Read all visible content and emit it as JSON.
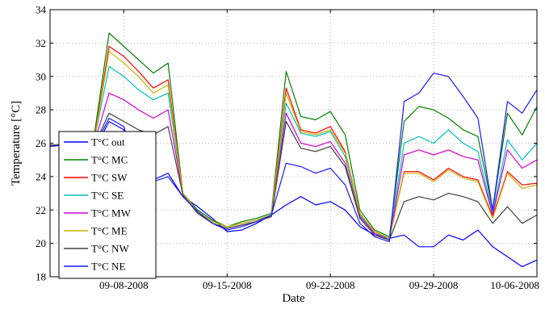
{
  "chart_data": {
    "type": "line",
    "xlabel": "Date",
    "ylabel": "Temperature [°C]",
    "xlim": [
      "2008-09-03",
      "2008-10-06"
    ],
    "ylim": [
      18,
      34
    ],
    "x_ticks": [
      "09-08-2008",
      "09-15-2008",
      "09-22-2008",
      "09-29-2008",
      "10-06-2008"
    ],
    "y_ticks": [
      18,
      20,
      22,
      24,
      26,
      28,
      30,
      32,
      34
    ],
    "grid": "on",
    "legend_position": "bottom-left",
    "series": [
      {
        "name": "T°C out",
        "color": "#0000ff",
        "points": [
          [
            "2008-09-03",
            25.8
          ],
          [
            "2008-09-04",
            26.0
          ],
          [
            "2008-09-05",
            25.4
          ],
          [
            "2008-09-06",
            25.6
          ],
          [
            "2008-09-07",
            27.3
          ],
          [
            "2008-09-08",
            26.8
          ],
          [
            "2008-09-09",
            24.2
          ],
          [
            "2008-09-10",
            23.8
          ],
          [
            "2008-09-11",
            24.2
          ],
          [
            "2008-09-12",
            22.8
          ],
          [
            "2008-09-13",
            22.2
          ],
          [
            "2008-09-14",
            21.5
          ],
          [
            "2008-09-15",
            20.7
          ],
          [
            "2008-09-16",
            20.8
          ],
          [
            "2008-09-17",
            21.2
          ],
          [
            "2008-09-18",
            21.7
          ],
          [
            "2008-09-19",
            22.3
          ],
          [
            "2008-09-20",
            22.8
          ],
          [
            "2008-09-21",
            22.3
          ],
          [
            "2008-09-22",
            22.5
          ],
          [
            "2008-09-23",
            22.0
          ],
          [
            "2008-09-24",
            21.0
          ],
          [
            "2008-09-25",
            20.5
          ],
          [
            "2008-09-26",
            20.3
          ],
          [
            "2008-09-27",
            20.5
          ],
          [
            "2008-09-28",
            19.8
          ],
          [
            "2008-09-29",
            19.8
          ],
          [
            "2008-09-30",
            20.5
          ],
          [
            "2008-10-01",
            20.2
          ],
          [
            "2008-10-02",
            20.8
          ],
          [
            "2008-10-03",
            19.8
          ],
          [
            "2008-10-04",
            19.2
          ],
          [
            "2008-10-05",
            18.6
          ],
          [
            "2008-10-06",
            19.0
          ]
        ]
      },
      {
        "name": "T°C MC",
        "color": "#008000",
        "points": [
          [
            "2008-09-03",
            25.9
          ],
          [
            "2008-09-04",
            25.9
          ],
          [
            "2008-09-05",
            25.8
          ],
          [
            "2008-09-06",
            26.5
          ],
          [
            "2008-09-07",
            32.6
          ],
          [
            "2008-09-08",
            31.8
          ],
          [
            "2008-09-09",
            31.0
          ],
          [
            "2008-09-10",
            30.2
          ],
          [
            "2008-09-11",
            30.8
          ],
          [
            "2008-09-12",
            23.0
          ],
          [
            "2008-09-13",
            22.0
          ],
          [
            "2008-09-14",
            21.4
          ],
          [
            "2008-09-15",
            21.0
          ],
          [
            "2008-09-16",
            21.3
          ],
          [
            "2008-09-17",
            21.5
          ],
          [
            "2008-09-18",
            21.8
          ],
          [
            "2008-09-19",
            30.3
          ],
          [
            "2008-09-20",
            27.6
          ],
          [
            "2008-09-21",
            27.4
          ],
          [
            "2008-09-22",
            27.9
          ],
          [
            "2008-09-23",
            26.5
          ],
          [
            "2008-09-24",
            22.0
          ],
          [
            "2008-09-25",
            20.8
          ],
          [
            "2008-09-26",
            20.4
          ],
          [
            "2008-09-27",
            27.3
          ],
          [
            "2008-09-28",
            28.2
          ],
          [
            "2008-09-29",
            28.0
          ],
          [
            "2008-09-30",
            27.5
          ],
          [
            "2008-10-01",
            26.8
          ],
          [
            "2008-10-02",
            26.4
          ],
          [
            "2008-10-03",
            22.0
          ],
          [
            "2008-10-04",
            27.8
          ],
          [
            "2008-10-05",
            26.5
          ],
          [
            "2008-10-06",
            28.2
          ]
        ]
      },
      {
        "name": "T°C SW",
        "color": "#ff0000",
        "points": [
          [
            "2008-09-03",
            25.9
          ],
          [
            "2008-09-04",
            25.9
          ],
          [
            "2008-09-05",
            25.7
          ],
          [
            "2008-09-06",
            26.3
          ],
          [
            "2008-09-07",
            31.8
          ],
          [
            "2008-09-08",
            31.2
          ],
          [
            "2008-09-09",
            30.3
          ],
          [
            "2008-09-10",
            29.3
          ],
          [
            "2008-09-11",
            29.8
          ],
          [
            "2008-09-12",
            23.0
          ],
          [
            "2008-09-13",
            21.9
          ],
          [
            "2008-09-14",
            21.3
          ],
          [
            "2008-09-15",
            21.0
          ],
          [
            "2008-09-16",
            21.2
          ],
          [
            "2008-09-17",
            21.4
          ],
          [
            "2008-09-18",
            21.7
          ],
          [
            "2008-09-19",
            29.3
          ],
          [
            "2008-09-20",
            26.8
          ],
          [
            "2008-09-21",
            26.6
          ],
          [
            "2008-09-22",
            27.0
          ],
          [
            "2008-09-23",
            25.5
          ],
          [
            "2008-09-24",
            21.8
          ],
          [
            "2008-09-25",
            20.7
          ],
          [
            "2008-09-26",
            20.3
          ],
          [
            "2008-09-27",
            24.3
          ],
          [
            "2008-09-28",
            24.3
          ],
          [
            "2008-09-29",
            23.8
          ],
          [
            "2008-09-30",
            24.5
          ],
          [
            "2008-10-01",
            24.0
          ],
          [
            "2008-10-02",
            23.8
          ],
          [
            "2008-10-03",
            21.6
          ],
          [
            "2008-10-04",
            24.3
          ],
          [
            "2008-10-05",
            23.5
          ],
          [
            "2008-10-06",
            23.6
          ]
        ]
      },
      {
        "name": "T°C SE",
        "color": "#00c0c0",
        "points": [
          [
            "2008-09-03",
            25.9
          ],
          [
            "2008-09-04",
            25.9
          ],
          [
            "2008-09-05",
            25.7
          ],
          [
            "2008-09-06",
            26.2
          ],
          [
            "2008-09-07",
            30.6
          ],
          [
            "2008-09-08",
            30.0
          ],
          [
            "2008-09-09",
            29.2
          ],
          [
            "2008-09-10",
            28.6
          ],
          [
            "2008-09-11",
            29.0
          ],
          [
            "2008-09-12",
            23.0
          ],
          [
            "2008-09-13",
            21.9
          ],
          [
            "2008-09-14",
            21.3
          ],
          [
            "2008-09-15",
            21.0
          ],
          [
            "2008-09-16",
            21.2
          ],
          [
            "2008-09-17",
            21.4
          ],
          [
            "2008-09-18",
            21.7
          ],
          [
            "2008-09-19",
            28.4
          ],
          [
            "2008-09-20",
            26.6
          ],
          [
            "2008-09-21",
            26.4
          ],
          [
            "2008-09-22",
            26.7
          ],
          [
            "2008-09-23",
            25.2
          ],
          [
            "2008-09-24",
            21.7
          ],
          [
            "2008-09-25",
            20.6
          ],
          [
            "2008-09-26",
            20.3
          ],
          [
            "2008-09-27",
            26.0
          ],
          [
            "2008-09-28",
            26.4
          ],
          [
            "2008-09-29",
            26.0
          ],
          [
            "2008-09-30",
            26.8
          ],
          [
            "2008-10-01",
            26.0
          ],
          [
            "2008-10-02",
            25.5
          ],
          [
            "2008-10-03",
            21.8
          ],
          [
            "2008-10-04",
            26.2
          ],
          [
            "2008-10-05",
            25.0
          ],
          [
            "2008-10-06",
            26.0
          ]
        ]
      },
      {
        "name": "T°C MW",
        "color": "#d000d0",
        "points": [
          [
            "2008-09-03",
            25.9
          ],
          [
            "2008-09-04",
            25.9
          ],
          [
            "2008-09-05",
            25.6
          ],
          [
            "2008-09-06",
            26.0
          ],
          [
            "2008-09-07",
            29.0
          ],
          [
            "2008-09-08",
            28.6
          ],
          [
            "2008-09-09",
            28.0
          ],
          [
            "2008-09-10",
            27.5
          ],
          [
            "2008-09-11",
            28.0
          ],
          [
            "2008-09-12",
            23.0
          ],
          [
            "2008-09-13",
            21.9
          ],
          [
            "2008-09-14",
            21.2
          ],
          [
            "2008-09-15",
            20.9
          ],
          [
            "2008-09-16",
            21.1
          ],
          [
            "2008-09-17",
            21.3
          ],
          [
            "2008-09-18",
            21.6
          ],
          [
            "2008-09-19",
            27.8
          ],
          [
            "2008-09-20",
            26.0
          ],
          [
            "2008-09-21",
            25.8
          ],
          [
            "2008-09-22",
            26.1
          ],
          [
            "2008-09-23",
            24.8
          ],
          [
            "2008-09-24",
            21.6
          ],
          [
            "2008-09-25",
            20.6
          ],
          [
            "2008-09-26",
            20.2
          ],
          [
            "2008-09-27",
            25.3
          ],
          [
            "2008-09-28",
            25.6
          ],
          [
            "2008-09-29",
            25.3
          ],
          [
            "2008-09-30",
            25.6
          ],
          [
            "2008-10-01",
            25.2
          ],
          [
            "2008-10-02",
            25.0
          ],
          [
            "2008-10-03",
            21.7
          ],
          [
            "2008-10-04",
            25.6
          ],
          [
            "2008-10-05",
            24.5
          ],
          [
            "2008-10-06",
            25.0
          ]
        ]
      },
      {
        "name": "T°C ME",
        "color": "#c8b400",
        "points": [
          [
            "2008-09-03",
            25.9
          ],
          [
            "2008-09-04",
            25.9
          ],
          [
            "2008-09-05",
            25.7
          ],
          [
            "2008-09-06",
            26.2
          ],
          [
            "2008-09-07",
            31.5
          ],
          [
            "2008-09-08",
            30.8
          ],
          [
            "2008-09-09",
            30.0
          ],
          [
            "2008-09-10",
            29.0
          ],
          [
            "2008-09-11",
            29.5
          ],
          [
            "2008-09-12",
            23.0
          ],
          [
            "2008-09-13",
            21.9
          ],
          [
            "2008-09-14",
            21.3
          ],
          [
            "2008-09-15",
            21.0
          ],
          [
            "2008-09-16",
            21.2
          ],
          [
            "2008-09-17",
            21.4
          ],
          [
            "2008-09-18",
            21.7
          ],
          [
            "2008-09-19",
            29.0
          ],
          [
            "2008-09-20",
            26.7
          ],
          [
            "2008-09-21",
            26.5
          ],
          [
            "2008-09-22",
            26.8
          ],
          [
            "2008-09-23",
            25.4
          ],
          [
            "2008-09-24",
            21.8
          ],
          [
            "2008-09-25",
            20.7
          ],
          [
            "2008-09-26",
            20.3
          ],
          [
            "2008-09-27",
            24.2
          ],
          [
            "2008-09-28",
            24.2
          ],
          [
            "2008-09-29",
            23.7
          ],
          [
            "2008-09-30",
            24.4
          ],
          [
            "2008-10-01",
            23.9
          ],
          [
            "2008-10-02",
            23.7
          ],
          [
            "2008-10-03",
            21.5
          ],
          [
            "2008-10-04",
            24.2
          ],
          [
            "2008-10-05",
            23.3
          ],
          [
            "2008-10-06",
            23.5
          ]
        ]
      },
      {
        "name": "T°C NW",
        "color": "#404040",
        "points": [
          [
            "2008-09-03",
            25.9
          ],
          [
            "2008-09-04",
            25.9
          ],
          [
            "2008-09-05",
            25.6
          ],
          [
            "2008-09-06",
            25.9
          ],
          [
            "2008-09-07",
            27.8
          ],
          [
            "2008-09-08",
            27.3
          ],
          [
            "2008-09-09",
            26.8
          ],
          [
            "2008-09-10",
            26.5
          ],
          [
            "2008-09-11",
            27.0
          ],
          [
            "2008-09-12",
            22.9
          ],
          [
            "2008-09-13",
            21.8
          ],
          [
            "2008-09-14",
            21.2
          ],
          [
            "2008-09-15",
            20.9
          ],
          [
            "2008-09-16",
            21.1
          ],
          [
            "2008-09-17",
            21.3
          ],
          [
            "2008-09-18",
            21.6
          ],
          [
            "2008-09-19",
            27.3
          ],
          [
            "2008-09-20",
            25.7
          ],
          [
            "2008-09-21",
            25.5
          ],
          [
            "2008-09-22",
            25.8
          ],
          [
            "2008-09-23",
            24.6
          ],
          [
            "2008-09-24",
            21.5
          ],
          [
            "2008-09-25",
            20.5
          ],
          [
            "2008-09-26",
            20.2
          ],
          [
            "2008-09-27",
            22.5
          ],
          [
            "2008-09-28",
            22.8
          ],
          [
            "2008-09-29",
            22.6
          ],
          [
            "2008-09-30",
            23.0
          ],
          [
            "2008-10-01",
            22.8
          ],
          [
            "2008-10-02",
            22.5
          ],
          [
            "2008-10-03",
            21.2
          ],
          [
            "2008-10-04",
            22.2
          ],
          [
            "2008-10-05",
            21.2
          ],
          [
            "2008-10-06",
            21.7
          ]
        ]
      },
      {
        "name": "T°C NE",
        "color": "#1a1aff",
        "points": [
          [
            "2008-09-03",
            25.8
          ],
          [
            "2008-09-04",
            25.9
          ],
          [
            "2008-09-05",
            25.5
          ],
          [
            "2008-09-06",
            25.8
          ],
          [
            "2008-09-07",
            27.5
          ],
          [
            "2008-09-08",
            27.0
          ],
          [
            "2008-09-09",
            24.0
          ],
          [
            "2008-09-10",
            23.7
          ],
          [
            "2008-09-11",
            24.0
          ],
          [
            "2008-09-12",
            22.8
          ],
          [
            "2008-09-13",
            21.9
          ],
          [
            "2008-09-14",
            21.2
          ],
          [
            "2008-09-15",
            20.8
          ],
          [
            "2008-09-16",
            21.0
          ],
          [
            "2008-09-17",
            21.3
          ],
          [
            "2008-09-18",
            21.7
          ],
          [
            "2008-09-19",
            24.8
          ],
          [
            "2008-09-20",
            24.6
          ],
          [
            "2008-09-21",
            24.2
          ],
          [
            "2008-09-22",
            24.5
          ],
          [
            "2008-09-23",
            23.5
          ],
          [
            "2008-09-24",
            21.2
          ],
          [
            "2008-09-25",
            20.4
          ],
          [
            "2008-09-26",
            20.1
          ],
          [
            "2008-09-27",
            28.5
          ],
          [
            "2008-09-28",
            29.0
          ],
          [
            "2008-09-29",
            30.2
          ],
          [
            "2008-09-30",
            30.0
          ],
          [
            "2008-10-01",
            28.8
          ],
          [
            "2008-10-02",
            27.5
          ],
          [
            "2008-10-03",
            22.0
          ],
          [
            "2008-10-04",
            28.5
          ],
          [
            "2008-10-05",
            27.8
          ],
          [
            "2008-10-06",
            29.2
          ]
        ]
      }
    ]
  }
}
